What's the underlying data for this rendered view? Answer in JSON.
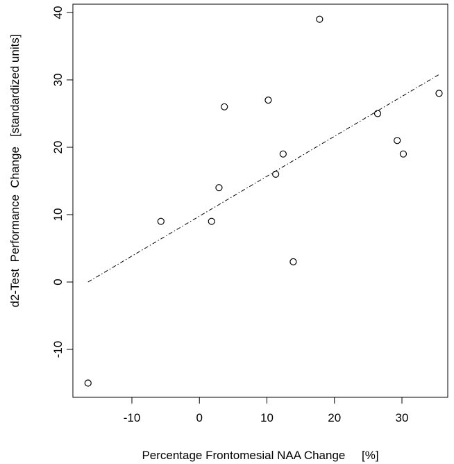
{
  "chart_data": {
    "type": "scatter",
    "title": "",
    "xlabel": "Percentage Frontomesial NAA Change     [%]",
    "ylabel": "d2-Test  Performance  Change   [standardized units]",
    "xlim": [
      -19,
      37
    ],
    "ylim": [
      -17,
      41
    ],
    "xticks": [
      -10,
      0,
      10,
      20,
      30
    ],
    "yticks": [
      -10,
      0,
      10,
      20,
      30,
      40
    ],
    "xtick_labels": [
      "-10",
      "0",
      "10",
      "20",
      "30"
    ],
    "ytick_labels": [
      "-10",
      "0",
      "10",
      "20",
      "30",
      "40"
    ],
    "grid": false,
    "series": [
      {
        "points": [
          {
            "x": -16.5,
            "y": -15
          },
          {
            "x": -5.7,
            "y": 9
          },
          {
            "x": 1.8,
            "y": 9
          },
          {
            "x": 2.9,
            "y": 14
          },
          {
            "x": 3.7,
            "y": 26
          },
          {
            "x": 10.2,
            "y": 27
          },
          {
            "x": 11.3,
            "y": 16
          },
          {
            "x": 12.4,
            "y": 19
          },
          {
            "x": 13.9,
            "y": 3
          },
          {
            "x": 17.8,
            "y": 39
          },
          {
            "x": 26.4,
            "y": 25
          },
          {
            "x": 29.3,
            "y": 21
          },
          {
            "x": 30.2,
            "y": 19
          },
          {
            "x": 35.5,
            "y": 28
          }
        ]
      }
    ],
    "regression_line": {
      "x": [
        -16.5,
        35.5
      ],
      "y": [
        0,
        30.8
      ],
      "style": "dot-dash"
    }
  }
}
